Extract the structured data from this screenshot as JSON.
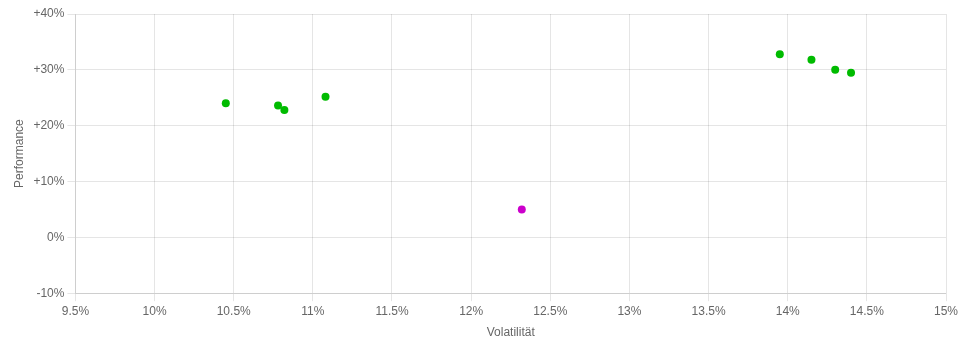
{
  "chart_data": {
    "type": "scatter",
    "xlabel": "Volatilität",
    "ylabel": "Performance",
    "xlim": [
      0.095,
      0.15
    ],
    "ylim": [
      -0.1,
      0.4
    ],
    "xticks": [
      {
        "value": 0.095,
        "label": "9.5%"
      },
      {
        "value": 0.1,
        "label": "10%"
      },
      {
        "value": 0.105,
        "label": "10.5%"
      },
      {
        "value": 0.11,
        "label": "11%"
      },
      {
        "value": 0.115,
        "label": "11.5%"
      },
      {
        "value": 0.12,
        "label": "12%"
      },
      {
        "value": 0.125,
        "label": "12.5%"
      },
      {
        "value": 0.13,
        "label": "13%"
      },
      {
        "value": 0.135,
        "label": "13.5%"
      },
      {
        "value": 0.14,
        "label": "14%"
      },
      {
        "value": 0.145,
        "label": "14.5%"
      },
      {
        "value": 0.15,
        "label": "15%"
      }
    ],
    "yticks": [
      {
        "value": -0.1,
        "label": "-10%"
      },
      {
        "value": 0.0,
        "label": "0%"
      },
      {
        "value": 0.1,
        "label": "+10%"
      },
      {
        "value": 0.2,
        "label": "+20%"
      },
      {
        "value": 0.3,
        "label": "+30%"
      },
      {
        "value": 0.4,
        "label": "+40%"
      }
    ],
    "grid": true,
    "series": [
      {
        "color": "#00bb00",
        "x": [
          0.1045,
          0.1078,
          0.1082,
          0.1108,
          0.1395,
          0.1415,
          0.143,
          0.144
        ],
        "values": [
          0.24,
          0.236,
          0.228,
          0.252,
          0.328,
          0.318,
          0.3,
          0.295
        ]
      },
      {
        "color": "#cc00cc",
        "x": [
          0.1232
        ],
        "values": [
          0.05
        ]
      }
    ]
  }
}
